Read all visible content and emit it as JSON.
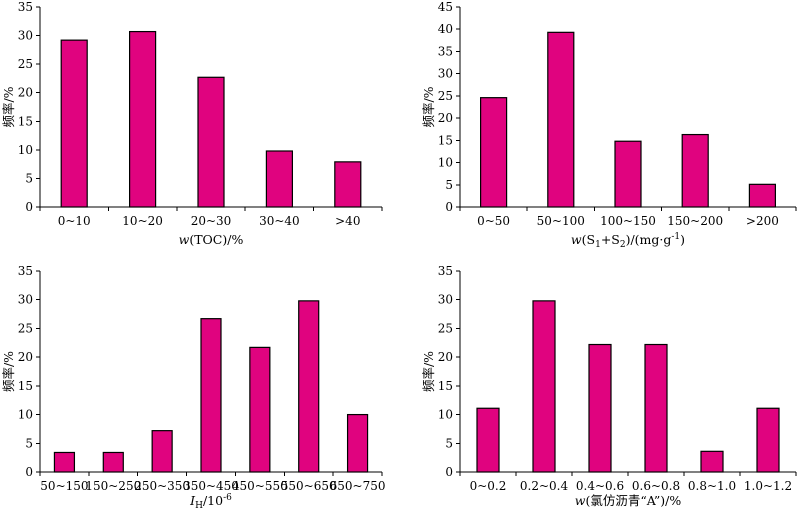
{
  "figure": {
    "bar_color": "#e0037f",
    "axis_color": "#000000"
  },
  "chart_data": [
    {
      "type": "bar",
      "title": "",
      "xlabel": "w(TOC)/%",
      "ylabel": "频率/%",
      "categories": [
        "0~10",
        "10~20",
        "20~30",
        "30~40",
        ">40"
      ],
      "values": [
        29.2,
        30.7,
        22.7,
        9.8,
        7.9
      ],
      "ylim": [
        0,
        35
      ],
      "yticks": [
        0,
        5,
        10,
        15,
        20,
        25,
        30,
        35
      ],
      "grid": false
    },
    {
      "type": "bar",
      "title": "",
      "xlabel": "w(S1+S2)/(mg·g-1)",
      "ylabel": "频率/%",
      "categories": [
        "0~50",
        "50~100",
        "100~150",
        "150~200",
        ">200"
      ],
      "values": [
        24.6,
        39.3,
        14.8,
        16.3,
        5.1
      ],
      "ylim": [
        0,
        45
      ],
      "yticks": [
        0,
        5,
        10,
        15,
        20,
        25,
        30,
        35,
        40,
        45
      ],
      "grid": false
    },
    {
      "type": "bar",
      "title": "",
      "xlabel": "IH/10-6",
      "ylabel": "频率/%",
      "categories": [
        "50~150",
        "150~250",
        "250~350",
        "350~450",
        "450~550",
        "550~650",
        "650~750"
      ],
      "values": [
        3.4,
        3.4,
        7.2,
        26.7,
        21.7,
        29.8,
        10.0
      ],
      "ylim": [
        0,
        35
      ],
      "yticks": [
        0,
        5,
        10,
        15,
        20,
        25,
        30,
        35
      ],
      "grid": false
    },
    {
      "type": "bar",
      "title": "",
      "xlabel": "w(氯仿沥青“A”)/%",
      "ylabel": "频率/%",
      "categories": [
        "0~0.2",
        "0.2~0.4",
        "0.4~0.6",
        "0.6~0.8",
        "0.8~1.0",
        "1.0~1.2"
      ],
      "values": [
        11.1,
        29.8,
        22.2,
        22.2,
        3.6,
        11.1
      ],
      "ylim": [
        0,
        35
      ],
      "yticks": [
        0,
        5,
        10,
        15,
        20,
        25,
        30,
        35
      ],
      "grid": false
    }
  ]
}
